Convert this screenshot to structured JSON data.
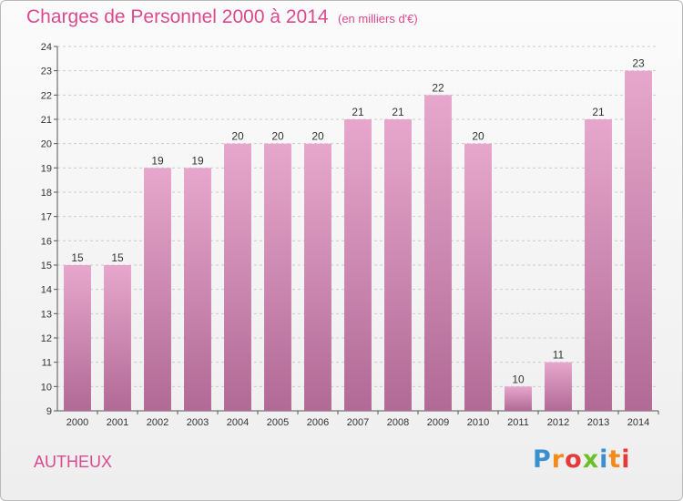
{
  "title": "Charges de Personnel 2000 à 2014",
  "subtitle": "(en milliers d'€)",
  "commune": "AUTHEUX",
  "logo": {
    "text": "Proxiti",
    "letters": [
      "P",
      "r",
      "o",
      "x",
      "i",
      "t",
      "i"
    ],
    "colors": [
      "#3a8fd0",
      "#f28a1c",
      "#e63a3a",
      "#6cbf2a",
      "#3a8fd0",
      "#f28a1c",
      "#e63a3a"
    ]
  },
  "colors": {
    "accent": "#d94a8f",
    "bar_top": "#e7a7cc",
    "bar_bottom": "#b06a95"
  },
  "chart_data": {
    "type": "bar",
    "categories": [
      "2000",
      "2001",
      "2002",
      "2003",
      "2004",
      "2005",
      "2006",
      "2007",
      "2008",
      "2009",
      "2010",
      "2011",
      "2012",
      "2013",
      "2014"
    ],
    "values": [
      15,
      15,
      19,
      19,
      20,
      20,
      20,
      21,
      21,
      22,
      20,
      10,
      11,
      21,
      23
    ],
    "yticks": [
      9,
      10,
      11,
      12,
      13,
      14,
      15,
      16,
      17,
      18,
      19,
      20,
      21,
      22,
      23,
      24
    ],
    "ylim": [
      9,
      24
    ],
    "grid": true,
    "data_labels": true
  }
}
